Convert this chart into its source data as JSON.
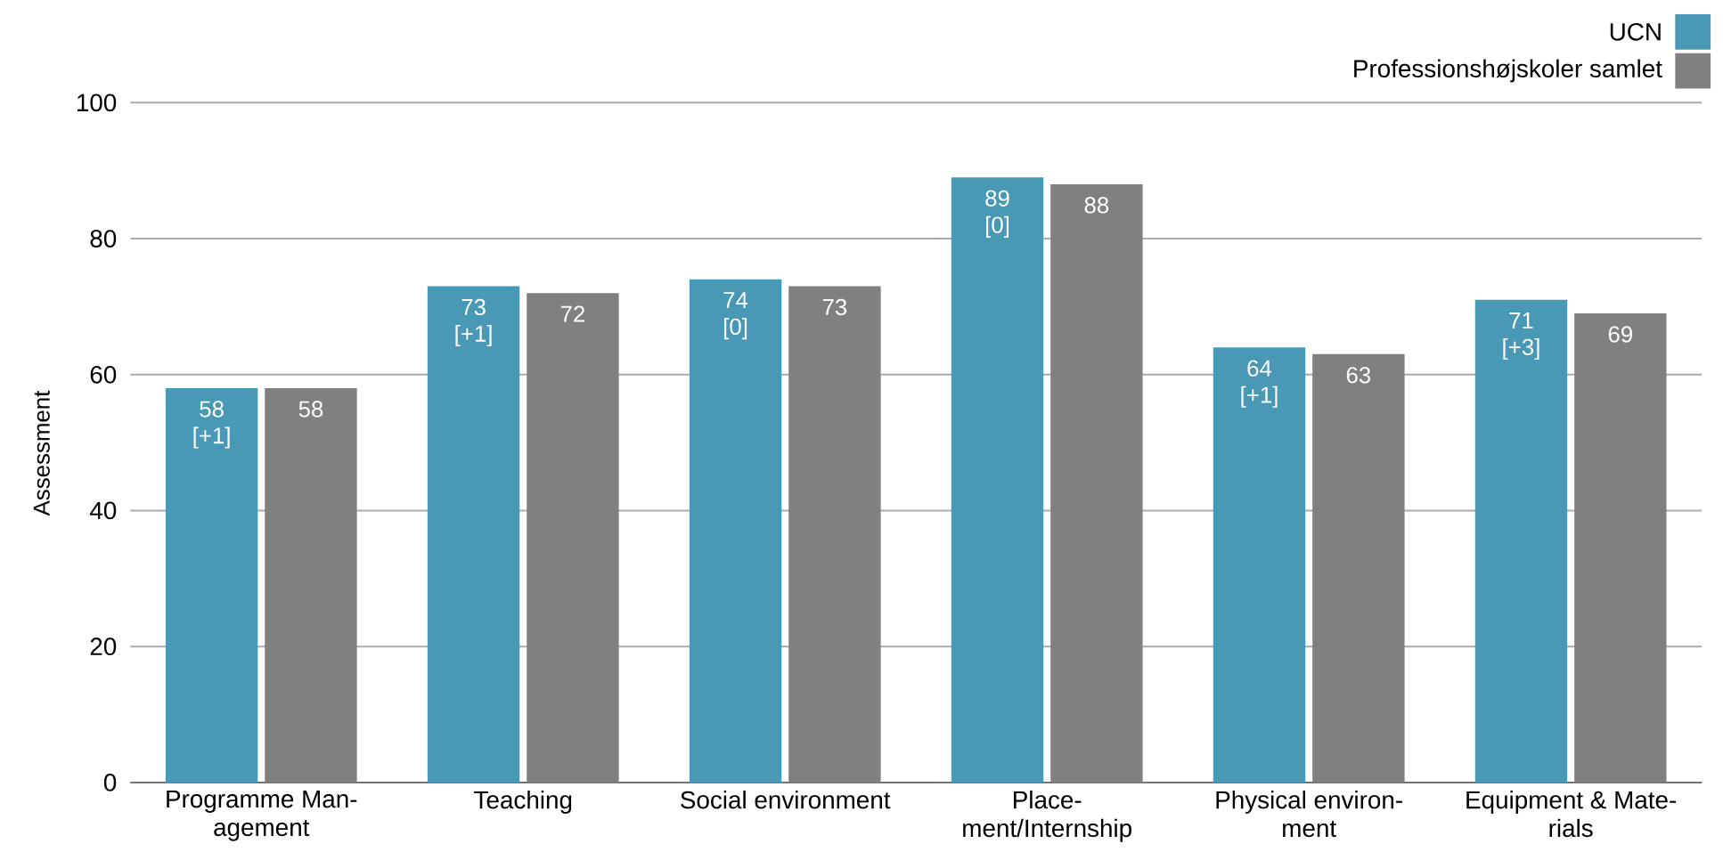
{
  "chart_data": {
    "type": "bar",
    "ylabel": "Assessment",
    "categories": [
      "Programme Man-agement",
      "Teaching",
      "Social environment",
      "Place-ment/Internship",
      "Physical environ-ment",
      "Equipment & Mate-rials"
    ],
    "series": [
      {
        "name": "UCN",
        "color": "#4898b6",
        "values": [
          58,
          73,
          74,
          89,
          64,
          71
        ],
        "value_labels": [
          "58 [+1]",
          "73 [+1]",
          "74 [0]",
          "89 [0]",
          "64 [+1]",
          "71 [+3]"
        ]
      },
      {
        "name": "Professionshøjskoler samlet",
        "color": "#808080",
        "values": [
          58,
          72,
          73,
          88,
          63,
          69
        ],
        "value_labels": [
          "58",
          "72",
          "73",
          "88",
          "63",
          "69"
        ]
      }
    ],
    "ylim": [
      0,
      100
    ],
    "yticks": [
      0,
      20,
      40,
      60,
      80,
      100
    ],
    "grid": "y",
    "legend": "top right"
  }
}
